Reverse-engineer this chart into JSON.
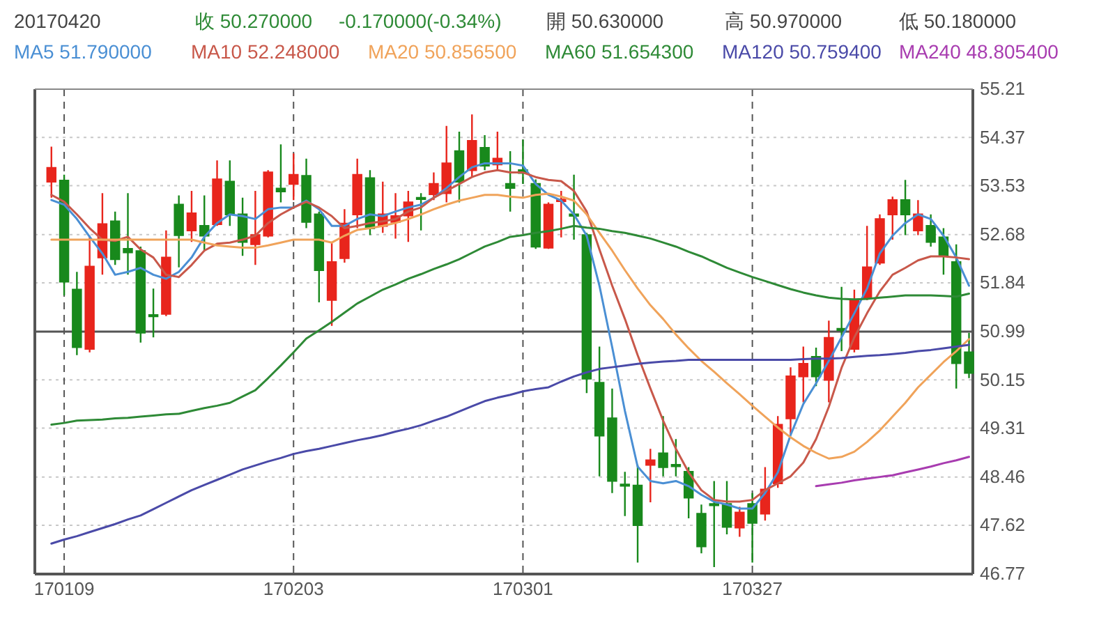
{
  "chart_data": {
    "type": "candlestick",
    "annotations": [
      "20170420",
      "收 50.270000",
      "-0.170000(-0.34%)",
      "開 50.630000",
      "高 50.970000",
      "低 50.180000"
    ],
    "categories": [
      null,
      "170109",
      null,
      null,
      null,
      null,
      null,
      null,
      null,
      null,
      null,
      null,
      null,
      null,
      null,
      null,
      null,
      null,
      null,
      "170203",
      null,
      null,
      null,
      null,
      null,
      null,
      null,
      null,
      null,
      null,
      null,
      null,
      null,
      null,
      null,
      null,
      null,
      "170301",
      null,
      null,
      null,
      null,
      null,
      null,
      null,
      null,
      null,
      null,
      null,
      null,
      null,
      null,
      null,
      null,
      null,
      "170327",
      null,
      null,
      null,
      null,
      null,
      null,
      null,
      null,
      null,
      null,
      null,
      null,
      null,
      null,
      null,
      null,
      null
    ],
    "ohlc": [
      [
        53.6,
        54.21,
        53.32,
        53.84
      ],
      [
        53.62,
        53.72,
        51.62,
        51.86
      ],
      [
        51.72,
        52.03,
        50.58,
        50.72
      ],
      [
        50.69,
        52.66,
        50.63,
        52.12
      ],
      [
        52.28,
        53.4,
        51.98,
        52.86
      ],
      [
        52.91,
        53.08,
        52.15,
        52.25
      ],
      [
        52.43,
        53.4,
        51.98,
        52.37
      ],
      [
        52.39,
        52.47,
        50.8,
        50.97
      ],
      [
        51.28,
        51.74,
        50.89,
        51.27
      ],
      [
        51.3,
        52.75,
        51.26,
        52.28
      ],
      [
        53.2,
        53.36,
        52.11,
        52.67
      ],
      [
        52.75,
        53.44,
        52.55,
        53.05
      ],
      [
        52.83,
        53.36,
        52.39,
        52.66
      ],
      [
        52.86,
        53.97,
        52.83,
        53.64
      ],
      [
        53.6,
        53.97,
        52.83,
        53.03
      ],
      [
        53.03,
        53.32,
        52.31,
        52.55
      ],
      [
        52.51,
        53.44,
        52.15,
        52.67
      ],
      [
        52.66,
        53.8,
        52.63,
        53.76
      ],
      [
        53.48,
        54.25,
        53.24,
        53.43
      ],
      [
        53.56,
        54.09,
        53.28,
        53.72
      ],
      [
        53.7,
        54.0,
        52.79,
        52.9
      ],
      [
        53.03,
        53.08,
        51.5,
        52.06
      ],
      [
        51.54,
        52.55,
        51.09,
        52.2
      ],
      [
        52.27,
        53.12,
        52.19,
        52.87
      ],
      [
        53.03,
        54.0,
        52.79,
        53.72
      ],
      [
        53.66,
        53.8,
        52.67,
        52.79
      ],
      [
        52.83,
        53.6,
        52.71,
        53.03
      ],
      [
        52.9,
        53.4,
        52.61,
        53.0
      ],
      [
        53.01,
        53.44,
        52.55,
        53.24
      ],
      [
        53.32,
        53.4,
        52.75,
        53.3
      ],
      [
        53.38,
        53.76,
        53.28,
        53.56
      ],
      [
        53.4,
        54.57,
        53.24,
        53.92
      ],
      [
        54.13,
        54.47,
        53.24,
        53.6
      ],
      [
        53.8,
        54.77,
        53.68,
        54.31
      ],
      [
        54.19,
        54.41,
        53.8,
        53.88
      ],
      [
        53.9,
        54.47,
        53.8,
        54.0
      ],
      [
        53.56,
        54.13,
        53.08,
        53.49
      ],
      [
        53.8,
        54.33,
        53.56,
        53.75
      ],
      [
        53.56,
        53.64,
        52.43,
        52.47
      ],
      [
        52.45,
        53.24,
        52.43,
        53.2
      ],
      [
        53.26,
        53.44,
        52.63,
        53.29
      ],
      [
        53.03,
        53.72,
        52.59,
        53.02
      ],
      [
        52.67,
        52.71,
        49.92,
        50.17
      ],
      [
        50.1,
        50.73,
        48.47,
        49.18
      ],
      [
        49.48,
        50.0,
        48.18,
        48.39
      ],
      [
        48.33,
        48.55,
        47.78,
        48.31
      ],
      [
        48.31,
        48.67,
        46.97,
        47.62
      ],
      [
        48.67,
        48.95,
        48.02,
        48.75
      ],
      [
        48.87,
        49.52,
        48.47,
        48.63
      ],
      [
        48.67,
        49.12,
        48.47,
        48.65
      ],
      [
        48.55,
        48.63,
        47.74,
        48.1
      ],
      [
        47.82,
        47.98,
        47.13,
        47.25
      ],
      [
        47.99,
        48.39,
        46.89,
        47.97
      ],
      [
        47.99,
        48.39,
        47.46,
        47.59
      ],
      [
        47.58,
        47.94,
        47.42,
        47.84
      ],
      [
        47.99,
        48.18,
        46.97,
        47.66
      ],
      [
        47.82,
        48.63,
        47.7,
        48.24
      ],
      [
        48.35,
        49.52,
        48.27,
        49.37
      ],
      [
        49.48,
        50.37,
        49.2,
        50.21
      ],
      [
        50.21,
        50.73,
        49.76,
        50.43
      ],
      [
        50.55,
        50.71,
        50.04,
        50.21
      ],
      [
        50.15,
        51.18,
        49.76,
        50.88
      ],
      [
        51.04,
        51.77,
        50.65,
        51.03
      ],
      [
        50.69,
        51.72,
        50.63,
        51.54
      ],
      [
        51.58,
        52.83,
        51.54,
        52.11
      ],
      [
        52.19,
        53.03,
        52.15,
        52.95
      ],
      [
        53.03,
        53.34,
        52.59,
        53.28
      ],
      [
        53.28,
        53.63,
        52.67,
        53.03
      ],
      [
        52.75,
        53.28,
        52.67,
        53.03
      ],
      [
        52.83,
        53.03,
        52.47,
        52.55
      ],
      [
        52.63,
        52.79,
        51.98,
        52.31
      ],
      [
        52.2,
        52.51,
        50.0,
        50.44
      ],
      [
        50.63,
        50.97,
        50.18,
        50.27
      ]
    ],
    "colors": [
      "#e8251c",
      "#18891c",
      "#18891c",
      "#e8251c",
      "#e8251c",
      "#18891c",
      "#18891c",
      "#18891c",
      "#18891c",
      "#e8251c",
      "#18891c",
      "#e8251c",
      "#18891c",
      "#e8251c",
      "#18891c",
      "#18891c",
      "#e8251c",
      "#e8251c",
      "#18891c",
      "#e8251c",
      "#18891c",
      "#18891c",
      "#e8251c",
      "#e8251c",
      "#e8251c",
      "#18891c",
      "#e8251c",
      "#e8251c",
      "#e8251c",
      "#18891c",
      "#e8251c",
      "#e8251c",
      "#18891c",
      "#e8251c",
      "#18891c",
      "#e8251c",
      "#18891c",
      "#18891c",
      "#18891c",
      "#e8251c",
      "#e8251c",
      "#18891c",
      "#18891c",
      "#18891c",
      "#18891c",
      "#18891c",
      "#18891c",
      "#e8251c",
      "#18891c",
      "#18891c",
      "#18891c",
      "#18891c",
      "#18891c",
      "#18891c",
      "#e8251c",
      "#18891c",
      "#e8251c",
      "#e8251c",
      "#e8251c",
      "#e8251c",
      "#18891c",
      "#e8251c",
      "#18891c",
      "#e8251c",
      "#e8251c",
      "#e8251c",
      "#e8251c",
      "#18891c",
      "#e8251c",
      "#18891c",
      "#18891c",
      "#18891c",
      "#18891c"
    ],
    "series": [
      {
        "name": "MA5 51.790000",
        "type": "line",
        "color": "#4a8fd4",
        "values": [
          53.28,
          53.2,
          52.95,
          52.64,
          52.35,
          51.98,
          52.03,
          52.1,
          51.98,
          51.91,
          52.03,
          52.28,
          52.64,
          52.88,
          53.03,
          53.0,
          52.95,
          53.12,
          53.15,
          53.15,
          53.27,
          53.12,
          52.83,
          52.83,
          52.95,
          53.03,
          53.0,
          53.08,
          53.15,
          53.2,
          53.32,
          53.49,
          53.68,
          53.85,
          53.92,
          53.92,
          53.92,
          53.88,
          53.56,
          53.37,
          53.27,
          53.03,
          52.66,
          51.79,
          50.72,
          49.61,
          48.64,
          48.39,
          48.35,
          48.39,
          48.3,
          48.15,
          48.03,
          47.98,
          47.91,
          47.91,
          48.18,
          48.54,
          49.19,
          49.73,
          50.09,
          50.48,
          50.89,
          51.31,
          51.74,
          52.35,
          52.66,
          52.88,
          53.03,
          52.95,
          52.66,
          52.28,
          51.79
        ]
      },
      {
        "name": "MA10 52.248000",
        "type": "line",
        "color": "#c8584a",
        "values": [
          53.37,
          53.25,
          53.03,
          52.79,
          52.59,
          52.57,
          52.64,
          52.42,
          52.28,
          51.98,
          51.94,
          52.15,
          52.4,
          52.52,
          52.54,
          52.59,
          52.66,
          52.88,
          53.03,
          53.15,
          53.25,
          53.15,
          53.0,
          52.79,
          52.83,
          52.88,
          52.91,
          52.95,
          53.08,
          53.15,
          53.32,
          53.44,
          53.56,
          53.68,
          53.76,
          53.8,
          53.76,
          53.76,
          53.68,
          53.63,
          53.61,
          53.44,
          53.08,
          52.42,
          51.79,
          51.21,
          50.58,
          50.0,
          49.44,
          48.95,
          48.54,
          48.23,
          48.06,
          48.03,
          48.03,
          48.06,
          48.23,
          48.35,
          48.47,
          48.71,
          49.12,
          49.68,
          50.36,
          50.89,
          51.31,
          51.69,
          51.98,
          52.1,
          52.23,
          52.3,
          52.3,
          52.28,
          52.25
        ]
      },
      {
        "name": "MA20 50.856500",
        "type": "line",
        "color": "#f0a35a",
        "values": [
          52.59,
          52.59,
          52.59,
          52.59,
          52.59,
          52.59,
          52.59,
          52.59,
          52.59,
          52.59,
          52.59,
          52.59,
          52.54,
          52.49,
          52.47,
          52.45,
          52.45,
          52.49,
          52.54,
          52.59,
          52.59,
          52.59,
          52.54,
          52.66,
          52.76,
          52.79,
          52.83,
          52.88,
          52.95,
          53.03,
          53.12,
          53.2,
          53.27,
          53.32,
          53.37,
          53.37,
          53.34,
          53.32,
          53.37,
          53.39,
          53.34,
          53.27,
          53.03,
          52.71,
          52.4,
          52.06,
          51.74,
          51.45,
          51.21,
          50.94,
          50.7,
          50.48,
          50.29,
          50.09,
          49.9,
          49.7,
          49.51,
          49.32,
          49.15,
          49.0,
          48.88,
          48.78,
          48.81,
          48.9,
          49.07,
          49.27,
          49.51,
          49.75,
          50.02,
          50.24,
          50.46,
          50.65,
          50.86
        ]
      },
      {
        "name": "MA60 51.654300",
        "type": "line",
        "color": "#2e8a36",
        "values": [
          49.37,
          49.4,
          49.44,
          49.45,
          49.46,
          49.48,
          49.49,
          49.51,
          49.53,
          49.55,
          49.56,
          49.61,
          49.66,
          49.7,
          49.75,
          49.86,
          49.97,
          50.18,
          50.4,
          50.63,
          50.87,
          51.01,
          51.16,
          51.32,
          51.48,
          51.6,
          51.72,
          51.81,
          51.91,
          51.99,
          52.08,
          52.16,
          52.25,
          52.36,
          52.47,
          52.55,
          52.64,
          52.67,
          52.71,
          52.74,
          52.78,
          52.83,
          52.8,
          52.78,
          52.74,
          52.71,
          52.66,
          52.61,
          52.54,
          52.47,
          52.38,
          52.3,
          52.2,
          52.1,
          52.02,
          51.94,
          51.87,
          51.8,
          51.73,
          51.67,
          51.62,
          51.58,
          51.56,
          51.55,
          51.56,
          51.58,
          51.6,
          51.62,
          51.62,
          51.62,
          51.61,
          51.6,
          51.65
        ]
      },
      {
        "name": "MA120 50.759400",
        "type": "line",
        "color": "#4a4aa8",
        "values": [
          47.3,
          47.37,
          47.43,
          47.5,
          47.57,
          47.64,
          47.72,
          47.79,
          47.9,
          48.01,
          48.12,
          48.23,
          48.32,
          48.41,
          48.5,
          48.59,
          48.66,
          48.73,
          48.79,
          48.86,
          48.91,
          48.95,
          49.0,
          49.05,
          49.1,
          49.14,
          49.19,
          49.25,
          49.3,
          49.36,
          49.44,
          49.51,
          49.6,
          49.69,
          49.78,
          49.84,
          49.89,
          49.95,
          49.99,
          50.02,
          50.12,
          50.21,
          50.28,
          50.34,
          50.37,
          50.4,
          50.43,
          50.45,
          50.47,
          50.48,
          50.5,
          50.5,
          50.5,
          50.5,
          50.5,
          50.5,
          50.5,
          50.5,
          50.5,
          50.51,
          50.52,
          50.52,
          50.53,
          50.55,
          50.57,
          50.58,
          50.6,
          50.62,
          50.65,
          50.67,
          50.7,
          50.73,
          50.76
        ]
      },
      {
        "name": "MA240 48.805400",
        "type": "line",
        "color": "#a83cb0",
        "values": [
          null,
          null,
          null,
          null,
          null,
          null,
          null,
          null,
          null,
          null,
          null,
          null,
          null,
          null,
          null,
          null,
          null,
          null,
          null,
          null,
          null,
          null,
          null,
          null,
          null,
          null,
          null,
          null,
          null,
          null,
          null,
          null,
          null,
          null,
          null,
          null,
          null,
          null,
          null,
          null,
          null,
          null,
          null,
          null,
          null,
          null,
          null,
          null,
          null,
          null,
          null,
          null,
          null,
          null,
          null,
          null,
          null,
          null,
          null,
          null,
          48.3,
          48.33,
          48.36,
          48.4,
          48.43,
          48.46,
          48.49,
          48.54,
          48.59,
          48.64,
          48.7,
          48.75,
          48.81
        ]
      }
    ],
    "ylim": [
      46.77,
      55.21
    ],
    "yticks": [
      46.77,
      47.62,
      48.46,
      49.31,
      50.15,
      50.99,
      51.84,
      52.68,
      53.53,
      54.37,
      55.21
    ],
    "ref_lines": [
      {
        "axis": "y",
        "value": 50.99,
        "color": "#555555"
      }
    ],
    "grid": true,
    "legend": "top"
  }
}
